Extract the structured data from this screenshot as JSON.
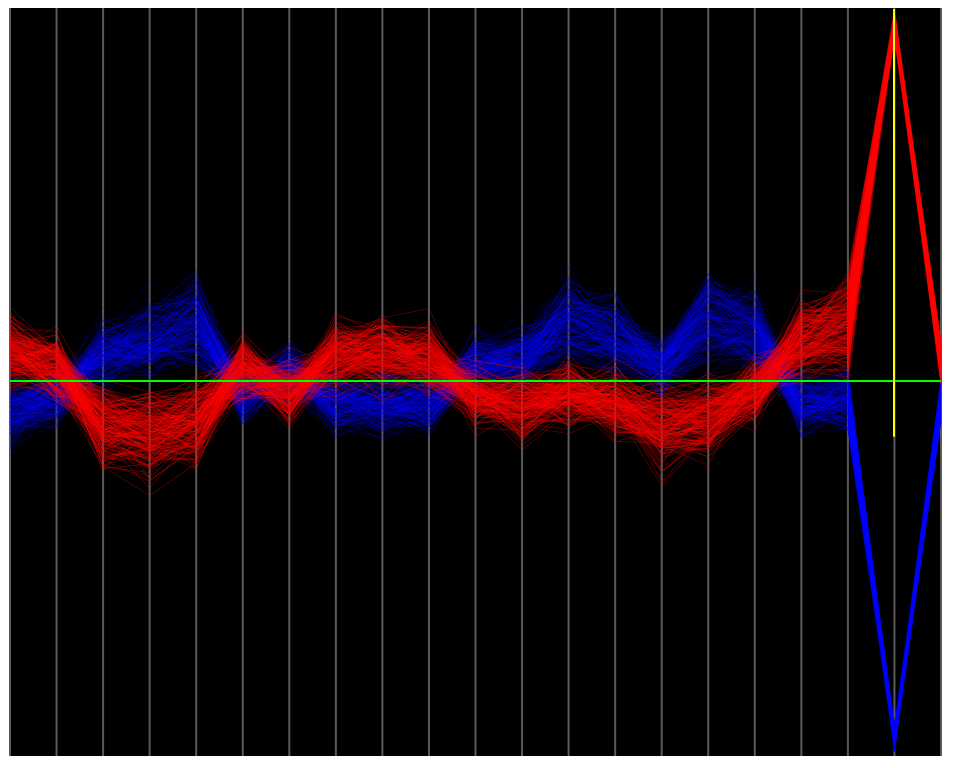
{
  "chart_data": {
    "type": "line",
    "title": "",
    "xlabel": "",
    "ylabel": "",
    "axis_count": 21,
    "axes": [
      1,
      2,
      3,
      4,
      5,
      6,
      7,
      8,
      9,
      10,
      11,
      12,
      13,
      14,
      15,
      16,
      17,
      18,
      19,
      20,
      21
    ],
    "ylim": [
      -1,
      1
    ],
    "grid": false,
    "legend": "none",
    "reference_line": {
      "orientation": "horizontal",
      "y": 0,
      "color": "#00ff00"
    },
    "marker_line": {
      "orientation": "vertical",
      "axis": 21,
      "y_range": [
        -0.15,
        1
      ],
      "color": "#ffff00"
    },
    "series": [
      {
        "color": "#ff0000",
        "values": [
          0.07,
          0.03,
          -0.1,
          -0.12,
          -0.09,
          0.03,
          -0.02,
          0.06,
          0.06,
          0.05,
          -0.03,
          -0.05,
          -0.03,
          -0.05,
          -0.1,
          -0.08,
          -0.02,
          0.09,
          0.13,
          1.0,
          0.05
        ]
      },
      {
        "color": "#0000ff",
        "values": [
          -0.07,
          -0.03,
          0.06,
          0.09,
          0.13,
          -0.03,
          0.02,
          -0.05,
          -0.05,
          -0.05,
          0.04,
          0.05,
          0.13,
          0.1,
          0.03,
          0.14,
          0.11,
          -0.05,
          -0.04,
          -1.0,
          -0.05
        ]
      }
    ],
    "colors": {
      "background": "#000000",
      "axis": "#5a5a5a",
      "class_a": "#ff0000",
      "class_b": "#0000ff"
    }
  }
}
